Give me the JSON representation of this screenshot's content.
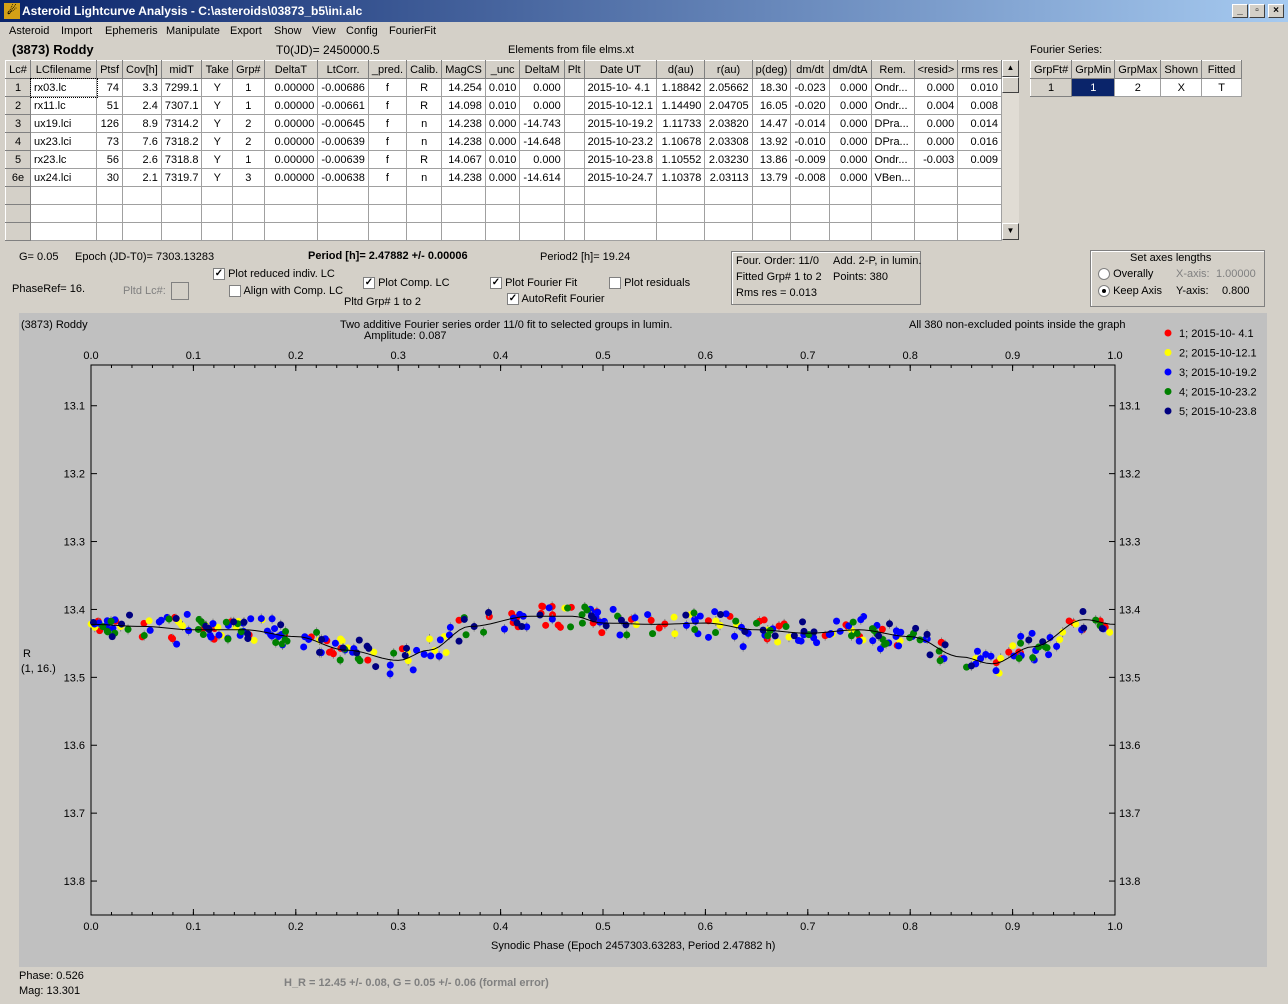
{
  "window": {
    "title": "Asteroid Lightcurve Analysis - C:\\asteroids\\03873_b5\\ini.alc",
    "icon": "asteroid-app-icon",
    "buttons": [
      "_",
      "▫",
      "×"
    ]
  },
  "menu": [
    "Asteroid",
    "Import",
    "Ephemeris",
    "Manipulate",
    "Export",
    "Show",
    "View",
    "Config",
    "FourierFit"
  ],
  "header": {
    "asteroid": "(3873) Roddy",
    "t0": "T0(JD)= 2450000.5",
    "elements": "Elements from file elms.xt"
  },
  "table": {
    "columns": [
      "Lc#",
      "LCfilename",
      "Ptsf",
      "Cov[h]",
      "midT",
      "Take",
      "Grp#",
      "DeltaT",
      "LtCorr.",
      "_pred.",
      "Calib.",
      "MagCS",
      "_unc",
      "DeltaM",
      "Plt",
      "Date UT",
      "d(au)",
      "r(au)",
      "p(deg)",
      "dm/dt",
      "dm/dtA",
      "Rem.",
      "<resid>",
      "rms res"
    ],
    "rows": [
      [
        "1",
        "rx03.lc",
        "74",
        "3.3",
        "7299.1",
        "Y",
        "1",
        "0.00000",
        "-0.00686",
        "f",
        "R",
        "14.254",
        "0.010",
        "0.000",
        "",
        "2015-10- 4.1",
        "1.18842",
        "2.05662",
        "18.30",
        "-0.023",
        "0.000",
        "Ondr...",
        "0.000",
        "0.010"
      ],
      [
        "2",
        "rx11.lc",
        "51",
        "2.4",
        "7307.1",
        "Y",
        "1",
        "0.00000",
        "-0.00661",
        "f",
        "R",
        "14.098",
        "0.010",
        "0.000",
        "",
        "2015-10-12.1",
        "1.14490",
        "2.04705",
        "16.05",
        "-0.020",
        "0.000",
        "Ondr...",
        "0.004",
        "0.008"
      ],
      [
        "3",
        "ux19.lci",
        "126",
        "8.9",
        "7314.2",
        "Y",
        "2",
        "0.00000",
        "-0.00645",
        "f",
        "n",
        "14.238",
        "0.000",
        "-14.743",
        "",
        "2015-10-19.2",
        "1.11733",
        "2.03820",
        "14.47",
        "-0.014",
        "0.000",
        "DPra...",
        "0.000",
        "0.014"
      ],
      [
        "4",
        "ux23.lci",
        "73",
        "7.6",
        "7318.2",
        "Y",
        "2",
        "0.00000",
        "-0.00639",
        "f",
        "n",
        "14.238",
        "0.000",
        "-14.648",
        "",
        "2015-10-23.2",
        "1.10678",
        "2.03308",
        "13.92",
        "-0.010",
        "0.000",
        "DPra...",
        "0.000",
        "0.016"
      ],
      [
        "5",
        "rx23.lc",
        "56",
        "2.6",
        "7318.8",
        "Y",
        "1",
        "0.00000",
        "-0.00639",
        "f",
        "R",
        "14.067",
        "0.010",
        "0.000",
        "",
        "2015-10-23.8",
        "1.10552",
        "2.03230",
        "13.86",
        "-0.009",
        "0.000",
        "Ondr...",
        "-0.003",
        "0.009"
      ],
      [
        "6e",
        "ux24.lci",
        "30",
        "2.1",
        "7319.7",
        "Y",
        "3",
        "0.00000",
        "-0.00638",
        "f",
        "n",
        "14.238",
        "0.000",
        "-14.614",
        "",
        "2015-10-24.7",
        "1.10378",
        "2.03113",
        "13.79",
        "-0.008",
        "0.000",
        "VBen...",
        "",
        ""
      ]
    ]
  },
  "fourier": {
    "label": "Fourier Series:",
    "columns": [
      "GrpFt#",
      "GrpMin",
      "GrpMax",
      "Shown",
      "Fitted"
    ],
    "row": [
      "1",
      "1",
      "2",
      "X",
      "T"
    ]
  },
  "controls": {
    "g": "G= 0.05",
    "epoch": "Epoch (JD-T0)= 7303.13283",
    "period": "Period [h]= 2.47882 +/- 0.00006",
    "period2": "Period2 [h]= 19.24",
    "phaseref": "PhaseRef= 16.",
    "pltdlc": "Pltd Lc#:",
    "plot_reduced": "Plot reduced indiv. LC",
    "align_comp": "Align with Comp. LC",
    "plot_comp": "Plot Comp. LC",
    "pltd_grp": "Pltd Grp#  1   to   2",
    "plot_fourier": "Plot Fourier Fit",
    "autorefit": "AutoRefit Fourier",
    "plot_resid": "Plot residuals",
    "info1": "Four. Order: 11/0",
    "info2": "Add. 2-P, in lumin.",
    "info3": "Fitted Grp# 1 to 2",
    "info4": "Points: 380",
    "info5": "Rms res     = 0.013",
    "axes_title": "Set axes lengths",
    "overally": "Overally",
    "keepaxis": "Keep Axis",
    "xaxis_label": "X-axis:",
    "xaxis_val": "1.00000",
    "yaxis_label": "Y-axis:",
    "yaxis_val": "0.800"
  },
  "plot": {
    "name": "(3873) Roddy",
    "title1": "Two additive Fourier series order 11/0 fit to selected groups in lumin.",
    "title2": "Amplitude: 0.087",
    "points_note": "All 380 non-excluded points inside the graph",
    "ylabel1": "R",
    "ylabel2": "(1, 16.)",
    "xlabel": "Synodic Phase (Epoch 2457303.63283, Period 2.47882 h)"
  },
  "footer": {
    "phase": "Phase:  0.526",
    "mag": "Mag:   13.301",
    "hg": "H_R = 12.45 +/- 0.08, G = 0.05 +/- 0.06 (formal error)"
  },
  "chart_data": {
    "type": "scatter",
    "x_ticks": [
      "0.0",
      "0.1",
      "0.2",
      "0.3",
      "0.4",
      "0.5",
      "0.6",
      "0.7",
      "0.8",
      "0.9",
      "1.0"
    ],
    "y_ticks": [
      "13.1",
      "13.2",
      "13.3",
      "13.4",
      "13.5",
      "13.6",
      "13.7",
      "13.8"
    ],
    "xlim": [
      0,
      1
    ],
    "ylim": [
      13.85,
      13.05
    ],
    "y_inverted": true,
    "series": [
      {
        "name": "1; 2015-10- 4.1",
        "color": "#ff0000"
      },
      {
        "name": "2; 2015-10-12.1",
        "color": "#ffff00"
      },
      {
        "name": "3; 2015-10-19.2",
        "color": "#0000ff"
      },
      {
        "name": "4; 2015-10-23.2",
        "color": "#008000"
      },
      {
        "name": "5; 2015-10-23.8",
        "color": "#000080"
      }
    ],
    "fit_curve": [
      [
        0,
        13.422
      ],
      [
        0.05,
        13.425
      ],
      [
        0.1,
        13.43
      ],
      [
        0.15,
        13.43
      ],
      [
        0.2,
        13.44
      ],
      [
        0.25,
        13.46
      ],
      [
        0.3,
        13.475
      ],
      [
        0.33,
        13.46
      ],
      [
        0.37,
        13.425
      ],
      [
        0.43,
        13.41
      ],
      [
        0.47,
        13.41
      ],
      [
        0.5,
        13.42
      ],
      [
        0.55,
        13.422
      ],
      [
        0.6,
        13.42
      ],
      [
        0.65,
        13.43
      ],
      [
        0.7,
        13.435
      ],
      [
        0.75,
        13.43
      ],
      [
        0.8,
        13.44
      ],
      [
        0.85,
        13.47
      ],
      [
        0.88,
        13.48
      ],
      [
        0.92,
        13.455
      ],
      [
        0.97,
        13.415
      ],
      [
        1.0,
        13.422
      ]
    ]
  }
}
